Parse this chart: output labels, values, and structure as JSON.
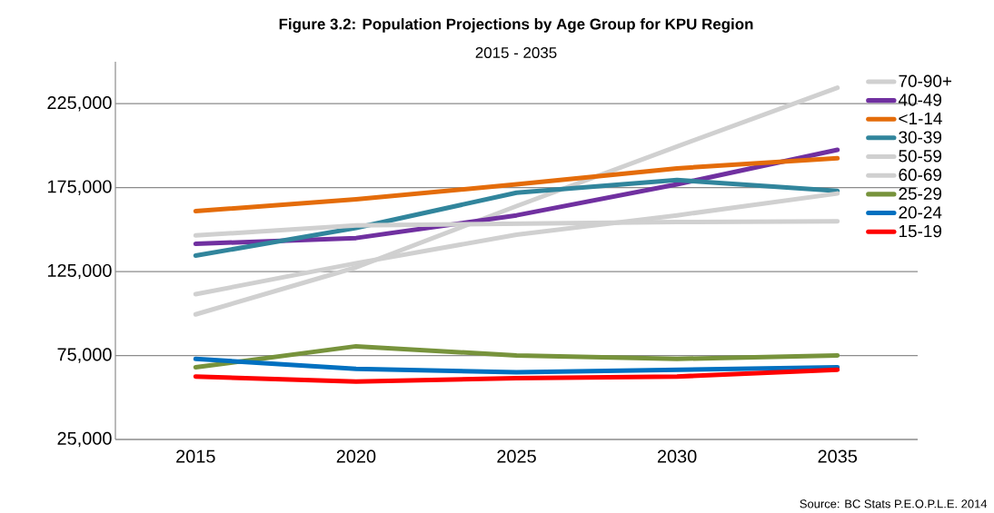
{
  "chart_data": {
    "type": "line",
    "title": "Figure 3.2: Population Projections by Age Group for KPU Region",
    "subtitle": "2015 - 2035",
    "categories": [
      "2015",
      "2020",
      "2025",
      "2030",
      "2035"
    ],
    "series": [
      {
        "name": "70-90+",
        "color": "#d0d0d0",
        "values": [
          99500,
          127500,
          164000,
          199500,
          234500
        ]
      },
      {
        "name": "40-49",
        "color": "#7030a0",
        "values": [
          141500,
          145000,
          158500,
          177000,
          197500
        ]
      },
      {
        "name": "<1-14",
        "color": "#e46c0a",
        "values": [
          161000,
          168000,
          177000,
          186500,
          192500
        ]
      },
      {
        "name": "30-39",
        "color": "#31859c",
        "values": [
          134500,
          151000,
          172000,
          179500,
          173000
        ]
      },
      {
        "name": "50-59",
        "color": "#d0d0d0",
        "values": [
          111500,
          130000,
          147000,
          158500,
          171500
        ]
      },
      {
        "name": "60-69",
        "color": "#d0d0d0",
        "values": [
          146500,
          152500,
          153500,
          154500,
          155000
        ]
      },
      {
        "name": "25-29",
        "color": "#77933c",
        "values": [
          68000,
          80500,
          75000,
          73000,
          75000
        ]
      },
      {
        "name": "20-24",
        "color": "#0070c0",
        "values": [
          73000,
          67000,
          65000,
          66500,
          68000
        ]
      },
      {
        "name": "15-19",
        "color": "#ff0000",
        "values": [
          62500,
          59500,
          61500,
          62500,
          66500
        ]
      }
    ],
    "ylim": [
      25000,
      250000
    ],
    "yticks": [
      {
        "value": 25000,
        "label": "25,000"
      },
      {
        "value": 75000,
        "label": "75,000"
      },
      {
        "value": 125000,
        "label": "125,000"
      },
      {
        "value": 175000,
        "label": "175,000"
      },
      {
        "value": 225000,
        "label": "225,000"
      }
    ],
    "grid": "y",
    "legend": "right",
    "marker": "none",
    "line_style": "solid",
    "annotations": [
      "Source: BC Stats P.E.O.P.L.E. 2014"
    ]
  }
}
